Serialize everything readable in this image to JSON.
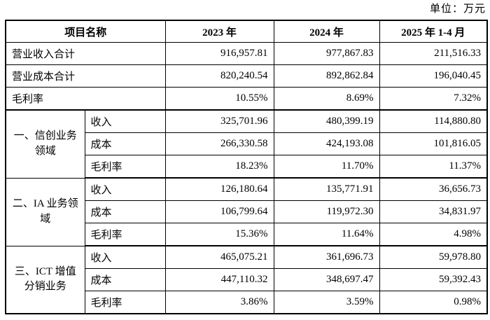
{
  "unit_label": "单位：万元",
  "colors": {
    "border": "#000000",
    "text": "#000000",
    "background": "#ffffff"
  },
  "table": {
    "headers": [
      "项目名称",
      "2023 年",
      "2024 年",
      "2025 年 1-4 月"
    ],
    "summary_rows": [
      {
        "label": "营业收入合计",
        "values": [
          "916,957.81",
          "977,867.83",
          "211,516.33"
        ]
      },
      {
        "label": "营业成本合计",
        "values": [
          "820,240.54",
          "892,862.84",
          "196,040.45"
        ]
      },
      {
        "label": "毛利率",
        "values": [
          "10.55%",
          "8.69%",
          "7.32%"
        ]
      }
    ],
    "sections": [
      {
        "name": "一、信创业务领域",
        "rows": [
          {
            "label": "收入",
            "values": [
              "325,701.96",
              "480,399.19",
              "114,880.80"
            ]
          },
          {
            "label": "成本",
            "values": [
              "266,330.58",
              "424,193.08",
              "101,816.05"
            ]
          },
          {
            "label": "毛利率",
            "values": [
              "18.23%",
              "11.70%",
              "11.37%"
            ]
          }
        ]
      },
      {
        "name": "二、IA 业务领域",
        "rows": [
          {
            "label": "收入",
            "values": [
              "126,180.64",
              "135,771.91",
              "36,656.73"
            ]
          },
          {
            "label": "成本",
            "values": [
              "106,799.64",
              "119,972.30",
              "34,831.97"
            ]
          },
          {
            "label": "毛利率",
            "values": [
              "15.36%",
              "11.64%",
              "4.98%"
            ]
          }
        ]
      },
      {
        "name": "三、ICT 增值分销业务",
        "rows": [
          {
            "label": "收入",
            "values": [
              "465,075.21",
              "361,696.73",
              "59,978.80"
            ]
          },
          {
            "label": "成本",
            "values": [
              "447,110.32",
              "348,697.47",
              "59,392.43"
            ]
          },
          {
            "label": "毛利率",
            "values": [
              "3.86%",
              "3.59%",
              "0.98%"
            ]
          }
        ]
      }
    ]
  }
}
